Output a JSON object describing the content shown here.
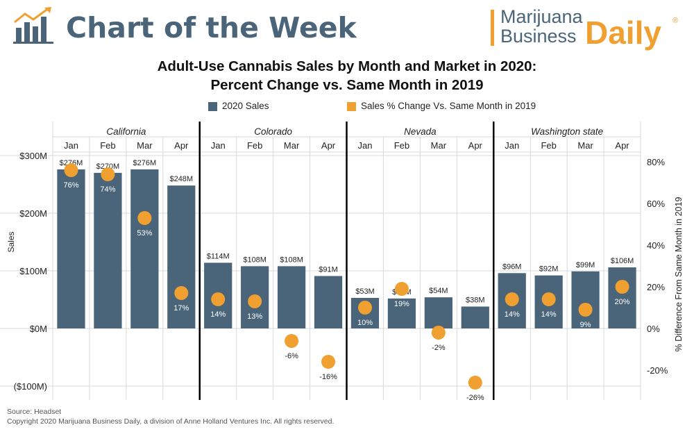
{
  "header": {
    "title": "Chart of the Week",
    "publisher_line1": "Marijuana",
    "publisher_line2": "Business",
    "publisher_line3": "Daily",
    "registered_mark": "®"
  },
  "chart_title_line1": "Adult-Use Cannabis Sales by Month and Market in 2020:",
  "chart_title_line2": "Percent Change vs. Same Month in 2019",
  "legend": {
    "sales_label": "2020 Sales",
    "pct_label": "Sales % Change Vs. Same Month in 2019"
  },
  "colors": {
    "bar": "#4a6579",
    "dot": "#f0a030",
    "divider": "#000000",
    "grid": "#d9d9d9",
    "title_blue": "#4a6579"
  },
  "footer": {
    "source": "Source: Headset",
    "copyright": "Copyright 2020 Marijuana Business Daily, a division of Anne Holland Ventures Inc. All rights reserved."
  },
  "chart_data": {
    "type": "bar",
    "title": "Adult-Use Cannabis Sales by Month and Market in 2020: Percent Change vs. Same Month in 2019",
    "ylabel": "Sales",
    "y2label": "% Difference From Same Month in 2019",
    "ylim": [
      -120,
      300
    ],
    "y2lim": [
      -0.35,
      0.85
    ],
    "y_ticks": [
      {
        "value": 300,
        "label": "$300M"
      },
      {
        "value": 200,
        "label": "$200M"
      },
      {
        "value": 100,
        "label": "$100M"
      },
      {
        "value": 0,
        "label": "$0M"
      },
      {
        "value": -100,
        "label": "($100M)"
      }
    ],
    "y2_ticks": [
      {
        "value": 0.8,
        "label": "80%"
      },
      {
        "value": 0.6,
        "label": "60%"
      },
      {
        "value": 0.4,
        "label": "40%"
      },
      {
        "value": 0.2,
        "label": "20%"
      },
      {
        "value": 0.0,
        "label": "0%"
      },
      {
        "value": -0.2,
        "label": "-20%"
      }
    ],
    "markets": [
      {
        "name": "California",
        "months": [
          {
            "month": "Jan",
            "sales": 276,
            "sales_label": "$276M",
            "pct": 0.76,
            "pct_label": "76%"
          },
          {
            "month": "Feb",
            "sales": 270,
            "sales_label": "$270M",
            "pct": 0.74,
            "pct_label": "74%"
          },
          {
            "month": "Mar",
            "sales": 276,
            "sales_label": "$276M",
            "pct": 0.53,
            "pct_label": "53%"
          },
          {
            "month": "Apr",
            "sales": 248,
            "sales_label": "$248M",
            "pct": 0.17,
            "pct_label": "17%"
          }
        ]
      },
      {
        "name": "Colorado",
        "months": [
          {
            "month": "Jan",
            "sales": 114,
            "sales_label": "$114M",
            "pct": 0.14,
            "pct_label": "14%"
          },
          {
            "month": "Feb",
            "sales": 108,
            "sales_label": "$108M",
            "pct": 0.13,
            "pct_label": "13%"
          },
          {
            "month": "Mar",
            "sales": 108,
            "sales_label": "$108M",
            "pct": -0.06,
            "pct_label": "-6%"
          },
          {
            "month": "Apr",
            "sales": 91,
            "sales_label": "$91M",
            "pct": -0.16,
            "pct_label": "-16%"
          }
        ]
      },
      {
        "name": "Nevada",
        "months": [
          {
            "month": "Jan",
            "sales": 53,
            "sales_label": "$53M",
            "pct": 0.1,
            "pct_label": "10%"
          },
          {
            "month": "Feb",
            "sales": 52,
            "sales_label": "$52M",
            "pct": 0.19,
            "pct_label": "19%"
          },
          {
            "month": "Mar",
            "sales": 54,
            "sales_label": "$54M",
            "pct": -0.02,
            "pct_label": "-2%"
          },
          {
            "month": "Apr",
            "sales": 38,
            "sales_label": "$38M",
            "pct": -0.26,
            "pct_label": "-26%"
          }
        ]
      },
      {
        "name": "Washington state",
        "months": [
          {
            "month": "Jan",
            "sales": 96,
            "sales_label": "$96M",
            "pct": 0.14,
            "pct_label": "14%"
          },
          {
            "month": "Feb",
            "sales": 92,
            "sales_label": "$92M",
            "pct": 0.14,
            "pct_label": "14%"
          },
          {
            "month": "Mar",
            "sales": 99,
            "sales_label": "$99M",
            "pct": 0.09,
            "pct_label": "9%"
          },
          {
            "month": "Apr",
            "sales": 106,
            "sales_label": "$106M",
            "pct": 0.2,
            "pct_label": "20%"
          }
        ]
      }
    ]
  }
}
